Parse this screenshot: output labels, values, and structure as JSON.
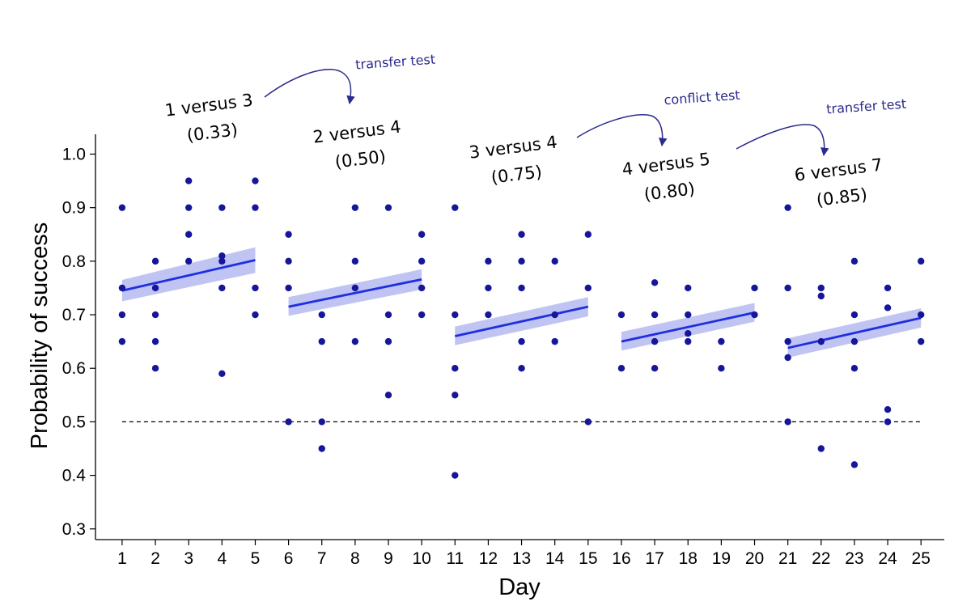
{
  "chart_data": {
    "type": "scatter",
    "xlabel": "Day",
    "ylabel": "Probability of success",
    "x_ticks": [
      "1",
      "2",
      "3",
      "4",
      "5",
      "6",
      "7",
      "8",
      "9",
      "10",
      "11",
      "12",
      "13",
      "14",
      "15",
      "16",
      "17",
      "18",
      "19",
      "20",
      "21",
      "22",
      "23",
      "24",
      "25"
    ],
    "y_ticks": [
      "0.3",
      "0.4",
      "0.5",
      "0.6",
      "0.7",
      "0.8",
      "0.9",
      "1.0"
    ],
    "xlim": [
      0.2,
      25.7
    ],
    "ylim": [
      0.28,
      1.037
    ],
    "point_color": "#16169a",
    "line_color": "#1f2ee0",
    "band_color": "#aab0ee",
    "reference_line": {
      "y": 0.5,
      "style": "dashed",
      "x_range": [
        1,
        25
      ]
    },
    "points": [
      {
        "x": 1,
        "y": 0.9
      },
      {
        "x": 1,
        "y": 0.75
      },
      {
        "x": 1,
        "y": 0.7
      },
      {
        "x": 1,
        "y": 0.65
      },
      {
        "x": 2,
        "y": 0.8
      },
      {
        "x": 2,
        "y": 0.75
      },
      {
        "x": 2,
        "y": 0.7
      },
      {
        "x": 2,
        "y": 0.65
      },
      {
        "x": 2,
        "y": 0.6
      },
      {
        "x": 3,
        "y": 0.95
      },
      {
        "x": 3,
        "y": 0.9
      },
      {
        "x": 3,
        "y": 0.85
      },
      {
        "x": 3,
        "y": 0.8
      },
      {
        "x": 4,
        "y": 0.9
      },
      {
        "x": 4,
        "y": 0.81
      },
      {
        "x": 4,
        "y": 0.8
      },
      {
        "x": 4,
        "y": 0.75
      },
      {
        "x": 4,
        "y": 0.59
      },
      {
        "x": 5,
        "y": 0.95
      },
      {
        "x": 5,
        "y": 0.9
      },
      {
        "x": 5,
        "y": 0.75
      },
      {
        "x": 5,
        "y": 0.7
      },
      {
        "x": 6,
        "y": 0.85
      },
      {
        "x": 6,
        "y": 0.8
      },
      {
        "x": 6,
        "y": 0.75
      },
      {
        "x": 6,
        "y": 0.5
      },
      {
        "x": 7,
        "y": 0.7
      },
      {
        "x": 7,
        "y": 0.65
      },
      {
        "x": 7,
        "y": 0.5
      },
      {
        "x": 7,
        "y": 0.45
      },
      {
        "x": 8,
        "y": 0.9
      },
      {
        "x": 8,
        "y": 0.8
      },
      {
        "x": 8,
        "y": 0.75
      },
      {
        "x": 8,
        "y": 0.65
      },
      {
        "x": 9,
        "y": 0.9
      },
      {
        "x": 9,
        "y": 0.7
      },
      {
        "x": 9,
        "y": 0.65
      },
      {
        "x": 9,
        "y": 0.55
      },
      {
        "x": 10,
        "y": 0.85
      },
      {
        "x": 10,
        "y": 0.8
      },
      {
        "x": 10,
        "y": 0.75
      },
      {
        "x": 10,
        "y": 0.7
      },
      {
        "x": 11,
        "y": 0.9
      },
      {
        "x": 11,
        "y": 0.7
      },
      {
        "x": 11,
        "y": 0.6
      },
      {
        "x": 11,
        "y": 0.55
      },
      {
        "x": 11,
        "y": 0.4
      },
      {
        "x": 12,
        "y": 0.8
      },
      {
        "x": 12,
        "y": 0.75
      },
      {
        "x": 12,
        "y": 0.7
      },
      {
        "x": 13,
        "y": 0.85
      },
      {
        "x": 13,
        "y": 0.8
      },
      {
        "x": 13,
        "y": 0.75
      },
      {
        "x": 13,
        "y": 0.65
      },
      {
        "x": 13,
        "y": 0.6
      },
      {
        "x": 14,
        "y": 0.8
      },
      {
        "x": 14,
        "y": 0.7
      },
      {
        "x": 14,
        "y": 0.65
      },
      {
        "x": 15,
        "y": 0.85
      },
      {
        "x": 15,
        "y": 0.75
      },
      {
        "x": 15,
        "y": 0.5
      },
      {
        "x": 16,
        "y": 0.7
      },
      {
        "x": 16,
        "y": 0.6
      },
      {
        "x": 17,
        "y": 0.76
      },
      {
        "x": 17,
        "y": 0.7
      },
      {
        "x": 17,
        "y": 0.65
      },
      {
        "x": 17,
        "y": 0.6
      },
      {
        "x": 18,
        "y": 0.75
      },
      {
        "x": 18,
        "y": 0.7
      },
      {
        "x": 18,
        "y": 0.665
      },
      {
        "x": 18,
        "y": 0.65
      },
      {
        "x": 19,
        "y": 0.65
      },
      {
        "x": 19,
        "y": 0.6
      },
      {
        "x": 20,
        "y": 0.75
      },
      {
        "x": 20,
        "y": 0.7
      },
      {
        "x": 21,
        "y": 0.9
      },
      {
        "x": 21,
        "y": 0.75
      },
      {
        "x": 21,
        "y": 0.65
      },
      {
        "x": 21,
        "y": 0.62
      },
      {
        "x": 21,
        "y": 0.5
      },
      {
        "x": 22,
        "y": 0.75
      },
      {
        "x": 22,
        "y": 0.735
      },
      {
        "x": 22,
        "y": 0.65
      },
      {
        "x": 22,
        "y": 0.45
      },
      {
        "x": 23,
        "y": 0.8
      },
      {
        "x": 23,
        "y": 0.7
      },
      {
        "x": 23,
        "y": 0.65
      },
      {
        "x": 23,
        "y": 0.6
      },
      {
        "x": 23,
        "y": 0.42
      },
      {
        "x": 24,
        "y": 0.75
      },
      {
        "x": 24,
        "y": 0.713
      },
      {
        "x": 24,
        "y": 0.523
      },
      {
        "x": 24,
        "y": 0.5
      },
      {
        "x": 25,
        "y": 0.8
      },
      {
        "x": 25,
        "y": 0.7
      },
      {
        "x": 25,
        "y": 0.65
      }
    ],
    "blocks": [
      {
        "label": "1 versus 3",
        "prob": "(0.33)",
        "x_start": 1,
        "x_end": 5,
        "fit_start": 0.745,
        "fit_end": 0.802,
        "ci_start": [
          0.725,
          0.765
        ],
        "ci_end": [
          0.778,
          0.826
        ]
      },
      {
        "label": "2 versus 4",
        "prob": "(0.50)",
        "x_start": 6,
        "x_end": 10,
        "fit_start": 0.715,
        "fit_end": 0.766,
        "ci_start": [
          0.698,
          0.733
        ],
        "ci_end": [
          0.747,
          0.785
        ]
      },
      {
        "label": "3 versus 4",
        "prob": "(0.75)",
        "x_start": 11,
        "x_end": 15,
        "fit_start": 0.66,
        "fit_end": 0.715,
        "ci_start": [
          0.643,
          0.678
        ],
        "ci_end": [
          0.697,
          0.733
        ]
      },
      {
        "label": "4 versus 5",
        "prob": "(0.80)",
        "x_start": 16,
        "x_end": 20,
        "fit_start": 0.65,
        "fit_end": 0.704,
        "ci_start": [
          0.633,
          0.668
        ],
        "ci_end": [
          0.687,
          0.722
        ]
      },
      {
        "label": "6 versus 7",
        "prob": "(0.85)",
        "x_start": 21,
        "x_end": 25,
        "fit_start": 0.638,
        "fit_end": 0.694,
        "ci_start": [
          0.62,
          0.656
        ],
        "ci_end": [
          0.676,
          0.712
        ]
      }
    ],
    "annotations": [
      {
        "text": "transfer test"
      },
      {
        "text": "conflict test"
      },
      {
        "text": "transfer test"
      }
    ]
  }
}
